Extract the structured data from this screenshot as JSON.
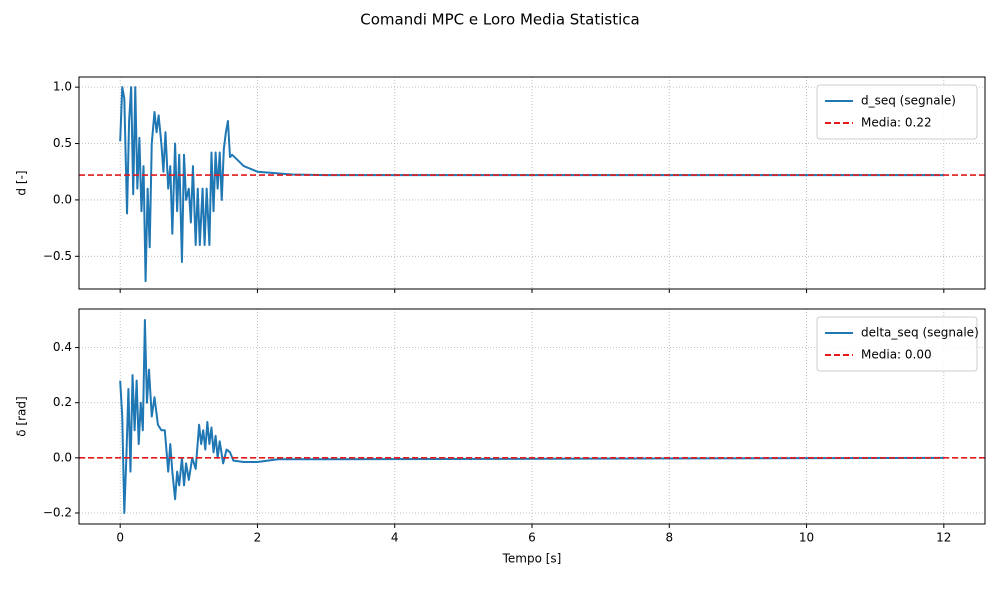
{
  "title": "Comandi MPC e Loro Media Statistica",
  "chart_data": [
    {
      "type": "line",
      "ylabel": "d [-]",
      "xlim": [
        -0.6,
        12.6
      ],
      "xticks": [
        0,
        2,
        4,
        6,
        8,
        10,
        12
      ],
      "ylim": [
        -0.79,
        1.09
      ],
      "yticks": [
        {
          "value": -0.5,
          "label": "−0.5"
        },
        {
          "value": 0,
          "label": "0.0"
        },
        {
          "value": 0.5,
          "label": "0.5"
        },
        {
          "value": 1,
          "label": "1.0"
        }
      ],
      "grid": true,
      "legend": "upper right",
      "series": [
        {
          "name": "d_seq (segnale)",
          "color": "#1f77b4",
          "x": [
            0,
            0.03,
            0.06,
            0.1,
            0.13,
            0.16,
            0.19,
            0.22,
            0.25,
            0.28,
            0.31,
            0.34,
            0.37,
            0.4,
            0.43,
            0.46,
            0.5,
            0.53,
            0.56,
            0.6,
            0.63,
            0.66,
            0.7,
            0.73,
            0.76,
            0.8,
            0.83,
            0.86,
            0.9,
            0.93,
            0.96,
            1.0,
            1.03,
            1.06,
            1.1,
            1.13,
            1.16,
            1.2,
            1.23,
            1.26,
            1.3,
            1.33,
            1.36,
            1.39,
            1.42,
            1.45,
            1.48,
            1.51,
            1.54,
            1.57,
            1.6,
            1.63,
            1.7,
            1.8,
            2.0,
            2.5,
            3.0,
            12
          ],
          "values": [
            0.52,
            1.0,
            0.9,
            -0.12,
            0.7,
            1.0,
            0.05,
            1.0,
            0.1,
            0.55,
            -0.1,
            0.3,
            -0.72,
            0.1,
            -0.42,
            0.5,
            0.78,
            0.6,
            0.75,
            0.5,
            0.25,
            0.6,
            0.1,
            0.3,
            -0.3,
            0.5,
            -0.1,
            0.4,
            -0.55,
            0.4,
            0.0,
            0.1,
            -0.2,
            0.3,
            -0.4,
            0.1,
            -0.4,
            0.1,
            -0.4,
            0.1,
            -0.4,
            0.42,
            -0.1,
            0.42,
            0.1,
            0.42,
            0.0,
            0.45,
            0.6,
            0.7,
            0.38,
            0.4,
            0.36,
            0.3,
            0.25,
            0.225,
            0.22,
            0.22
          ]
        }
      ],
      "hlines": [
        {
          "name": "Media: 0.22",
          "value": 0.22,
          "color": "#e41a1c"
        }
      ]
    },
    {
      "type": "line",
      "ylabel": "δ [rad]",
      "xlabel": "Tempo [s]",
      "xlim": [
        -0.6,
        12.6
      ],
      "xticks": [
        0,
        2,
        4,
        6,
        8,
        10,
        12
      ],
      "ylim": [
        -0.24,
        0.54
      ],
      "yticks": [
        {
          "value": -0.2,
          "label": "−0.2"
        },
        {
          "value": 0,
          "label": "0.0"
        },
        {
          "value": 0.2,
          "label": "0.2"
        },
        {
          "value": 0.4,
          "label": "0.4"
        }
      ],
      "grid": true,
      "legend": "upper right",
      "series": [
        {
          "name": "delta_seq (segnale)",
          "color": "#1f77b4",
          "x": [
            0,
            0.03,
            0.06,
            0.09,
            0.12,
            0.15,
            0.18,
            0.21,
            0.24,
            0.27,
            0.3,
            0.33,
            0.36,
            0.39,
            0.42,
            0.46,
            0.5,
            0.55,
            0.6,
            0.65,
            0.7,
            0.73,
            0.76,
            0.8,
            0.83,
            0.86,
            0.9,
            0.93,
            0.96,
            1.0,
            1.05,
            1.1,
            1.15,
            1.18,
            1.21,
            1.24,
            1.27,
            1.3,
            1.33,
            1.36,
            1.39,
            1.42,
            1.45,
            1.5,
            1.55,
            1.6,
            1.65,
            1.8,
            2.0,
            2.3,
            3.0,
            12
          ],
          "values": [
            0.28,
            0.15,
            -0.2,
            0.0,
            0.25,
            -0.05,
            0.3,
            0.1,
            0.28,
            0.05,
            0.2,
            0.1,
            0.5,
            0.2,
            0.32,
            0.15,
            0.22,
            0.12,
            0.1,
            0.1,
            -0.05,
            0.05,
            -0.05,
            -0.15,
            -0.05,
            -0.1,
            0.0,
            -0.1,
            -0.02,
            -0.08,
            0.0,
            -0.04,
            0.12,
            0.05,
            0.1,
            0.03,
            0.13,
            0.05,
            0.11,
            0.02,
            0.08,
            0.0,
            0.06,
            -0.02,
            0.03,
            0.02,
            -0.01,
            -0.015,
            -0.015,
            -0.005,
            -0.005,
            0.0
          ]
        }
      ],
      "hlines": [
        {
          "name": "Media: 0.00",
          "value": 0.0,
          "color": "#e41a1c"
        }
      ]
    }
  ]
}
